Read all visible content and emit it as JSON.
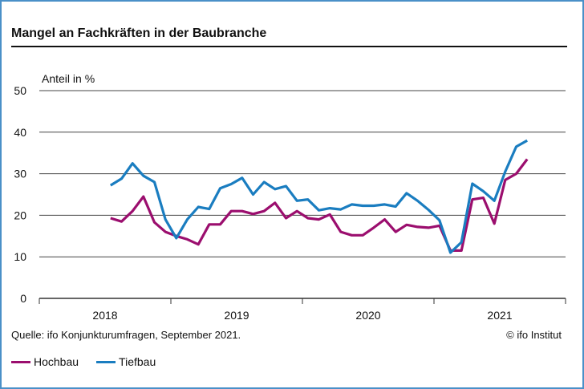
{
  "title": "Mangel an Fachkräften in der Baubranche",
  "source": "Quelle: ifo Konjunkturumfragen, September 2021.",
  "copyright": "© ifo Institut",
  "chart_data": {
    "type": "line",
    "title": "Mangel an Fachkräften in der Baubranche",
    "ylabel": "Anteil in %",
    "xlabel": "",
    "ylim": [
      0,
      50
    ],
    "yticks": [
      "0",
      "10",
      "20",
      "30",
      "40",
      "50"
    ],
    "xticks": [
      "2018",
      "2019",
      "2020",
      "2021"
    ],
    "x_start": "2018-07",
    "x_end": "2021-09",
    "frequency": "monthly",
    "grid": "horizontal",
    "legend": "bottom-left",
    "series": [
      {
        "name": "Hochbau",
        "color": "#9b0e6e",
        "values": [
          19.3,
          18.5,
          21,
          24.5,
          18.3,
          16,
          15,
          14.2,
          13,
          17.8,
          17.8,
          21,
          21,
          20.3,
          21,
          23,
          19.3,
          21,
          19.3,
          19,
          20.2,
          16,
          15.2,
          15.2,
          17,
          19,
          16,
          17.7,
          17.2,
          17,
          17.5,
          11.5,
          11.5,
          23.8,
          24.2,
          18,
          28.5,
          30,
          33.5
        ]
      },
      {
        "name": "Tiefbau",
        "color": "#1a7dc0",
        "values": [
          27.2,
          28.8,
          32.5,
          29.5,
          28,
          19,
          14.5,
          19,
          22,
          21.5,
          26.5,
          27.5,
          29,
          25,
          28,
          26.3,
          27,
          23.5,
          23.8,
          21.2,
          21.7,
          21.4,
          22.6,
          22.3,
          22.3,
          22.6,
          22.1,
          25.3,
          23.5,
          21.3,
          18.8,
          11,
          13.5,
          27.6,
          25.8,
          23.5,
          30.5,
          36.5,
          38
        ]
      }
    ]
  }
}
